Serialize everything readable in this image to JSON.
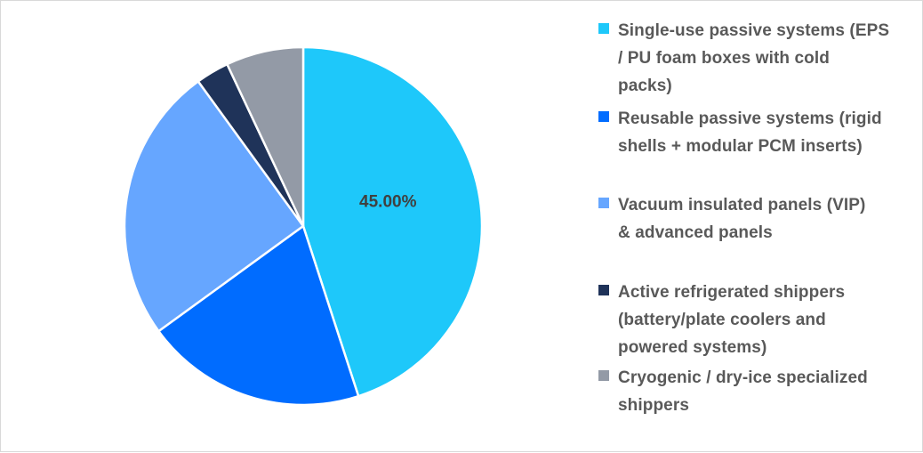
{
  "chart_data": {
    "type": "pie",
    "title": "",
    "slices": [
      {
        "label": "Single-use passive systems (EPS / PU foam boxes with cold packs)",
        "value": 45.0,
        "color": "#1ec8fa",
        "data_label": "45.00%"
      },
      {
        "label": "Reusable passive systems (rigid shells + modular PCM inserts)",
        "value": 20.0,
        "color": "#006cff",
        "data_label": ""
      },
      {
        "label": "Vacuum insulated panels (VIP) & advanced panels",
        "value": 25.0,
        "color": "#66a6ff",
        "data_label": ""
      },
      {
        "label": "Active refrigerated shippers (battery/plate coolers and powered systems)",
        "value": 3.0,
        "color": "#1f3359",
        "data_label": ""
      },
      {
        "label": "Cryogenic / dry-ice specialized shippers",
        "value": 7.0,
        "color": "#939aa6",
        "data_label": ""
      }
    ],
    "legend_position": "right",
    "start_angle": "top, clockwise"
  }
}
